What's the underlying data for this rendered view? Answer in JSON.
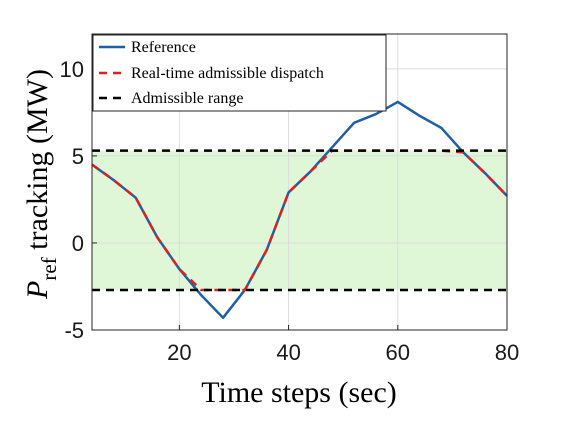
{
  "chart_data": {
    "type": "line",
    "xlabel": "Time steps (sec)",
    "ylabel": {
      "main": "P",
      "sub": "ref",
      "rest": " tracking (MW)"
    },
    "xlim": [
      4,
      80
    ],
    "ylim": [
      -5,
      12
    ],
    "xticks": [
      20,
      40,
      60,
      80
    ],
    "yticks": [
      -5,
      0,
      5,
      10
    ],
    "xtick_labels": [
      "20",
      "40",
      "60",
      "80"
    ],
    "ytick_labels": [
      "-5",
      "0",
      "5",
      "10"
    ],
    "grid": true,
    "legend_position": "top-left",
    "admissible_range": [
      -2.7,
      5.3
    ],
    "series": [
      {
        "name": "Reference",
        "color": "#1f5fa8",
        "style": "solid",
        "x": [
          4,
          8,
          12,
          16,
          20,
          24,
          28,
          32,
          36,
          40,
          44,
          48,
          52,
          56,
          60,
          64,
          68,
          72,
          76,
          80
        ],
        "y": [
          4.5,
          3.6,
          2.6,
          0.3,
          -1.5,
          -3.0,
          -4.3,
          -2.7,
          -0.4,
          2.9,
          4.1,
          5.5,
          6.9,
          7.4,
          8.1,
          7.3,
          6.6,
          5.2,
          4.0,
          2.7
        ]
      },
      {
        "name": "Real-time admissible dispatch",
        "color": "#e02020",
        "style": "dashed",
        "x": [
          4,
          8,
          12,
          16,
          20,
          24,
          28,
          32,
          36,
          40,
          44,
          48,
          52,
          56,
          60,
          64,
          68,
          72,
          76,
          80
        ],
        "y": [
          4.5,
          3.6,
          2.6,
          0.3,
          -1.5,
          -2.7,
          -2.7,
          -2.7,
          -0.4,
          2.9,
          4.1,
          5.3,
          5.3,
          5.3,
          5.3,
          5.3,
          5.3,
          5.2,
          4.0,
          2.7
        ]
      },
      {
        "name": "Admissible range",
        "color": "#000000",
        "style": "dashed",
        "bounds": [
          -2.7,
          5.3
        ]
      }
    ],
    "band_color": "#dff7d7"
  }
}
